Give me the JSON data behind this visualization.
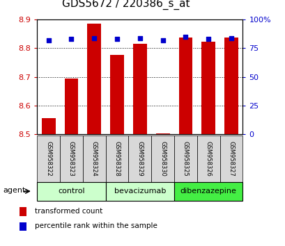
{
  "title": "GDS5672 / 220386_s_at",
  "samples": [
    "GSM958322",
    "GSM958323",
    "GSM958324",
    "GSM958328",
    "GSM958329",
    "GSM958330",
    "GSM958325",
    "GSM958326",
    "GSM958327"
  ],
  "red_values": [
    8.555,
    8.695,
    8.885,
    8.778,
    8.815,
    8.502,
    8.838,
    8.822,
    8.838
  ],
  "blue_values": [
    82,
    83,
    84,
    83,
    84,
    82,
    85,
    83,
    84
  ],
  "ymin": 8.5,
  "ymax": 8.9,
  "y_ticks": [
    8.5,
    8.6,
    8.7,
    8.8,
    8.9
  ],
  "right_yticks": [
    0,
    25,
    50,
    75,
    100
  ],
  "right_yticklabels": [
    "0",
    "25",
    "50",
    "75",
    "100%"
  ],
  "bar_color": "#cc0000",
  "dot_color": "#0000cc",
  "bar_width": 0.6,
  "left_label_color": "#cc0000",
  "right_label_color": "#0000cc",
  "legend_red": "transformed count",
  "legend_blue": "percentile rank within the sample",
  "agent_label": "agent",
  "title_fontsize": 11,
  "group_info": [
    {
      "label": "control",
      "start": 0,
      "end": 2,
      "color": "#ccffcc"
    },
    {
      "label": "bevacizumab",
      "start": 3,
      "end": 5,
      "color": "#ccffcc"
    },
    {
      "label": "dibenzazepine",
      "start": 6,
      "end": 8,
      "color": "#44ee44"
    }
  ]
}
